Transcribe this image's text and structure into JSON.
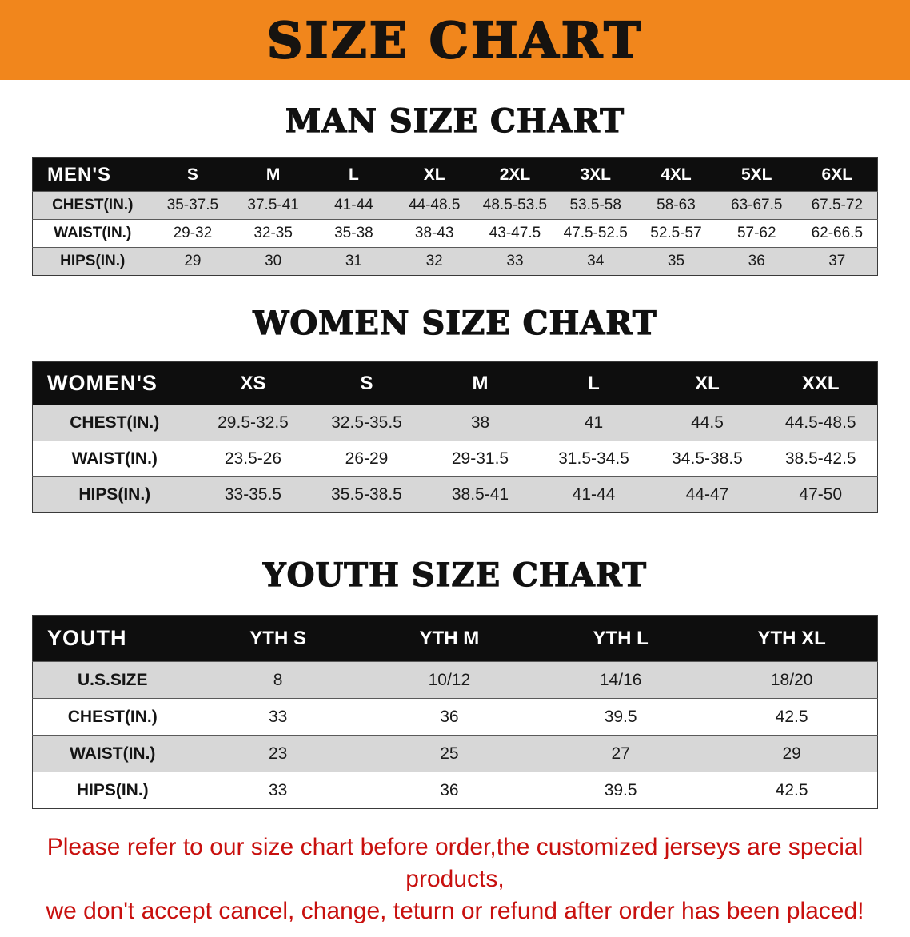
{
  "banner": {
    "title": "SIZE CHART"
  },
  "sections": [
    {
      "heading": "MAN SIZE CHART",
      "table": {
        "header": [
          "MEN'S",
          "S",
          "M",
          "L",
          "XL",
          "2XL",
          "3XL",
          "4XL",
          "5XL",
          "6XL"
        ],
        "rows": [
          [
            "CHEST(IN.)",
            "35-37.5",
            "37.5-41",
            "41-44",
            "44-48.5",
            "48.5-53.5",
            "53.5-58",
            "58-63",
            "63-67.5",
            "67.5-72"
          ],
          [
            "WAIST(IN.)",
            "29-32",
            "32-35",
            "35-38",
            "38-43",
            "43-47.5",
            "47.5-52.5",
            "52.5-57",
            "57-62",
            "62-66.5"
          ],
          [
            "HIPS(IN.)",
            "29",
            "30",
            "31",
            "32",
            "33",
            "34",
            "35",
            "36",
            "37"
          ]
        ]
      }
    },
    {
      "heading": "WOMEN SIZE CHART",
      "table": {
        "header": [
          "WOMEN'S",
          "XS",
          "S",
          "M",
          "L",
          "XL",
          "XXL"
        ],
        "rows": [
          [
            "CHEST(IN.)",
            "29.5-32.5",
            "32.5-35.5",
            "38",
            "41",
            "44.5",
            "44.5-48.5"
          ],
          [
            "WAIST(IN.)",
            "23.5-26",
            "26-29",
            "29-31.5",
            "31.5-34.5",
            "34.5-38.5",
            "38.5-42.5"
          ],
          [
            "HIPS(IN.)",
            "33-35.5",
            "35.5-38.5",
            "38.5-41",
            "41-44",
            "44-47",
            "47-50"
          ]
        ]
      }
    },
    {
      "heading": "YOUTH SIZE CHART",
      "table": {
        "header": [
          "YOUTH",
          "YTH S",
          "YTH M",
          "YTH L",
          "YTH XL"
        ],
        "rows": [
          [
            "U.S.SIZE",
            "8",
            "10/12",
            "14/16",
            "18/20"
          ],
          [
            "CHEST(IN.)",
            "33",
            "36",
            "39.5",
            "42.5"
          ],
          [
            "WAIST(IN.)",
            "23",
            "25",
            "27",
            "29"
          ],
          [
            "HIPS(IN.)",
            "33",
            "36",
            "39.5",
            "42.5"
          ]
        ]
      }
    }
  ],
  "footer": {
    "line1": "Please refer to our size chart before order,the customized jerseys are special products,",
    "line2": "we don't accept cancel, change, teturn or refund after order has been placed!"
  },
  "colors": {
    "banner_bg": "#F1861C",
    "header_bg": "#0E0E0E",
    "row_alt_bg": "#D7D7D7",
    "notice_text": "#C8100E"
  }
}
